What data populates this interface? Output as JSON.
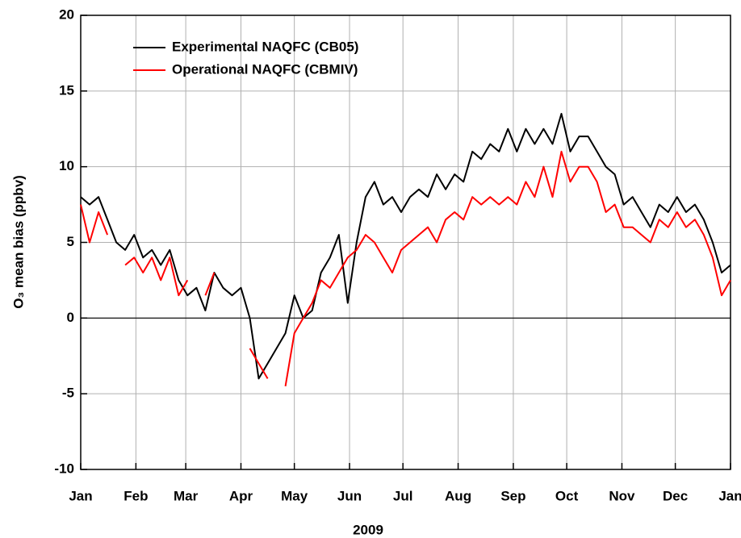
{
  "chart_data": {
    "type": "line",
    "xlabel": "2009",
    "ylabel": "O₃ mean bias (ppbv)",
    "x": [
      0,
      5,
      10,
      15,
      20,
      25,
      30,
      35,
      40,
      45,
      50,
      55,
      60,
      65,
      70,
      75,
      80,
      85,
      90,
      95,
      100,
      105,
      110,
      115,
      120,
      125,
      130,
      135,
      140,
      145,
      150,
      155,
      160,
      165,
      170,
      175,
      180,
      185,
      190,
      195,
      200,
      205,
      210,
      215,
      220,
      225,
      230,
      235,
      240,
      245,
      250,
      255,
      260,
      265,
      270,
      275,
      280,
      285,
      290,
      295,
      300,
      305,
      310,
      315,
      320,
      325,
      330,
      335,
      340,
      345,
      350,
      355,
      360,
      365
    ],
    "series": [
      {
        "name": "Experimental NAQFC (CB05)",
        "color": "#000000",
        "values": [
          8,
          7.5,
          8,
          6.5,
          5,
          4.5,
          5.5,
          4,
          4.5,
          3.5,
          4.5,
          2.5,
          1.5,
          2,
          0.5,
          3,
          2,
          1.5,
          2,
          0,
          -4,
          -3,
          -2,
          -1,
          1.5,
          0,
          0.5,
          3,
          4,
          5.5,
          1,
          5,
          8,
          9,
          7.5,
          8,
          7,
          8,
          8.5,
          8,
          9.5,
          8.5,
          9.5,
          9,
          11,
          10.5,
          11.5,
          11,
          12.5,
          11,
          12.5,
          11.5,
          12.5,
          11.5,
          13.5,
          11,
          12,
          12,
          11,
          10,
          9.5,
          7.5,
          8,
          7,
          6,
          7.5,
          7,
          8,
          7,
          7.5,
          6.5,
          5,
          3,
          3.5
        ]
      },
      {
        "name": "Operational NAQFC (CBMIV)",
        "color": "#ff0000",
        "values": [
          7.5,
          5,
          7,
          5.5,
          null,
          3.5,
          4,
          3,
          4,
          2.5,
          4,
          1.5,
          2.5,
          null,
          1.5,
          3,
          null,
          -1,
          null,
          -2,
          -3,
          -4,
          null,
          -4.5,
          -1,
          0,
          1,
          2.5,
          2,
          3,
          4,
          4.5,
          5.5,
          5,
          4,
          3,
          4.5,
          5,
          5.5,
          6,
          5,
          6.5,
          7,
          6.5,
          8,
          7.5,
          8,
          7.5,
          8,
          7.5,
          9,
          8,
          10,
          8,
          11,
          9,
          10,
          10,
          9,
          7,
          7.5,
          6,
          6,
          5.5,
          5,
          6.5,
          6,
          7,
          6,
          6.5,
          5.5,
          4,
          1.5,
          2.5
        ]
      }
    ],
    "xlim": [
      0,
      365
    ],
    "xticks": [
      {
        "value": 0,
        "label": "Jan"
      },
      {
        "value": 31,
        "label": "Feb"
      },
      {
        "value": 59,
        "label": "Mar"
      },
      {
        "value": 90,
        "label": "Apr"
      },
      {
        "value": 120,
        "label": "May"
      },
      {
        "value": 151,
        "label": "Jun"
      },
      {
        "value": 181,
        "label": "Jul"
      },
      {
        "value": 212,
        "label": "Aug"
      },
      {
        "value": 243,
        "label": "Sep"
      },
      {
        "value": 273,
        "label": "Oct"
      },
      {
        "value": 304,
        "label": "Nov"
      },
      {
        "value": 334,
        "label": "Dec"
      },
      {
        "value": 365,
        "label": "Jan"
      }
    ],
    "ylim": [
      -10,
      20
    ],
    "yticks": [
      -10,
      -5,
      0,
      5,
      10,
      15,
      20
    ],
    "grid": true,
    "legend": "upper-left"
  }
}
